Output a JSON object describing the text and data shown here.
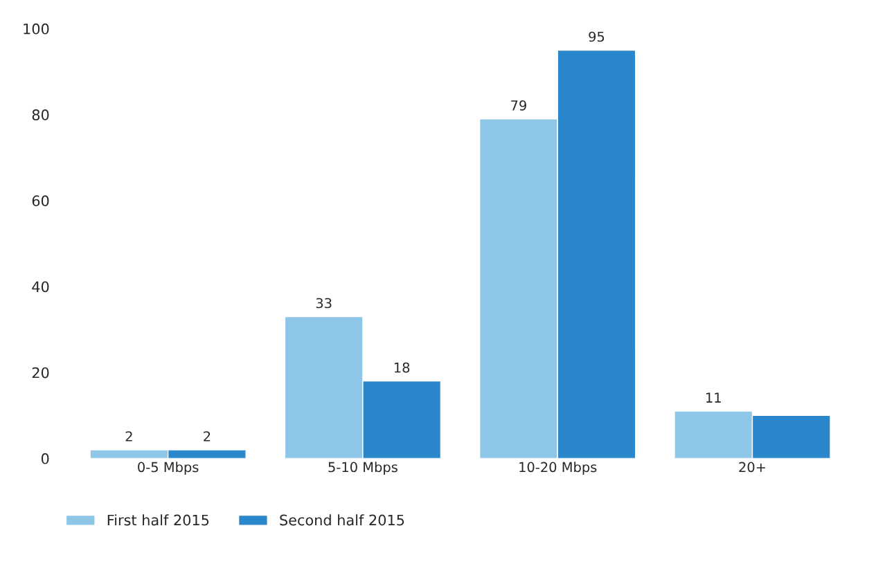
{
  "chart_data": {
    "type": "bar",
    "categories": [
      "0-5 Mbps",
      "5-10 Mbps",
      "10-20 Mbps",
      "20+"
    ],
    "series": [
      {
        "name": "First half 2015",
        "color": "#8ec6e8",
        "values": [
          2,
          33,
          79,
          11
        ],
        "value_labels": [
          "2",
          "33",
          "79",
          "11"
        ]
      },
      {
        "name": "Second half 2015",
        "color": "#2a87cc",
        "values": [
          2,
          18,
          95,
          10
        ],
        "value_labels": [
          "2",
          "18",
          "95",
          null
        ]
      }
    ],
    "ylim": [
      0,
      100
    ],
    "yticks": [
      0,
      20,
      40,
      60,
      80,
      100
    ],
    "grid": false,
    "legend": "bottom left"
  }
}
